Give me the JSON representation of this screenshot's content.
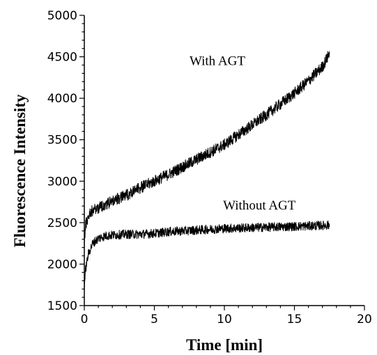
{
  "chart_data": {
    "type": "line",
    "title": "",
    "xlabel": "Time [min]",
    "ylabel": "Fluorescence Intensity",
    "xlim": [
      0,
      20
    ],
    "ylim": [
      1500,
      5000
    ],
    "xticks": [
      0,
      5,
      10,
      15,
      20
    ],
    "yticks": [
      1500,
      2000,
      2500,
      3000,
      3500,
      4000,
      4500,
      5000
    ],
    "grid": false,
    "legend": "none",
    "line_color": "#000000",
    "series": [
      {
        "label": "With AGT",
        "x": [
          0,
          0.1,
          0.3,
          0.5,
          1,
          1.5,
          2,
          3,
          4,
          5,
          6,
          7,
          8,
          9,
          10,
          11,
          12,
          13,
          14,
          15,
          16,
          17,
          17.5
        ],
        "y": [
          2250,
          2480,
          2580,
          2640,
          2680,
          2720,
          2760,
          2830,
          2920,
          3000,
          3080,
          3170,
          3260,
          3350,
          3440,
          3560,
          3680,
          3800,
          3930,
          4060,
          4210,
          4380,
          4540
        ],
        "noise": 70
      },
      {
        "label": "Without AGT",
        "x": [
          0,
          0.1,
          0.3,
          0.6,
          1,
          1.5,
          2,
          3,
          4,
          5,
          6,
          8,
          10,
          12,
          14,
          16,
          17.5
        ],
        "y": [
          1720,
          1950,
          2130,
          2250,
          2310,
          2340,
          2350,
          2360,
          2360,
          2370,
          2390,
          2410,
          2430,
          2440,
          2450,
          2460,
          2470
        ],
        "noise": 55
      }
    ],
    "annotations": [
      {
        "text": "With AGT",
        "x": 9.5,
        "y": 4400
      },
      {
        "text": "Without AGT",
        "x": 12.5,
        "y": 2660
      }
    ]
  }
}
